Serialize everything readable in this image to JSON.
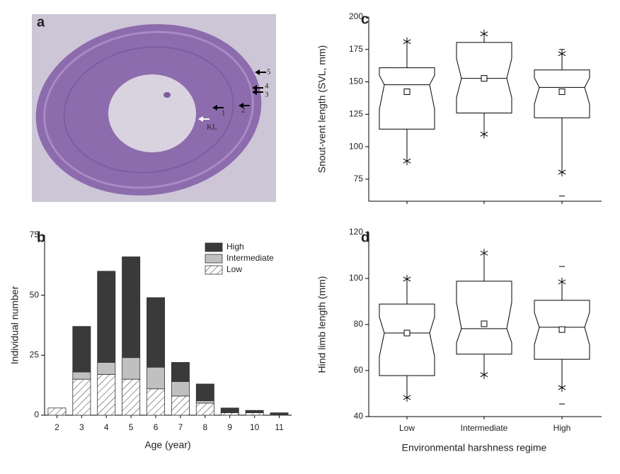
{
  "chart_data": [
    {
      "type": "image",
      "panel": "a",
      "annotations": [
        "1",
        "2",
        "3",
        "4",
        "5",
        "KL"
      ]
    },
    {
      "type": "bar",
      "stacked": true,
      "panel": "b",
      "xlabel": "Age (year)",
      "ylabel": "Individual number",
      "categories": [
        "2",
        "3",
        "4",
        "5",
        "6",
        "7",
        "8",
        "9",
        "10",
        "11"
      ],
      "series": [
        {
          "name": "Low",
          "color": "#ffffff",
          "pattern": "hatch",
          "values": [
            3,
            15,
            17,
            15,
            11,
            8,
            5,
            1,
            1,
            0
          ]
        },
        {
          "name": "Intermediate",
          "color": "#c0c0c0",
          "values": [
            0,
            3,
            5,
            9,
            9,
            6,
            1,
            0,
            0,
            0
          ]
        },
        {
          "name": "High",
          "color": "#3a3a3a",
          "values": [
            0,
            19,
            38,
            42,
            29,
            8,
            7,
            2,
            1,
            1
          ]
        }
      ],
      "ylim": [
        0,
        75
      ],
      "yticks": [
        0,
        25,
        50,
        75
      ],
      "legend": "upper right"
    },
    {
      "type": "box",
      "panel": "c",
      "ylabel": "Snout-vent length (SVL, mm)",
      "ylim": [
        58,
        200
      ],
      "yticks": [
        75,
        100,
        125,
        150,
        175,
        200
      ],
      "q1": [
        113.6,
        126,
        122.3
      ],
      "median": [
        147.8,
        152.7,
        145.7
      ],
      "q3": [
        160.9,
        180.4,
        159.2
      ],
      "mean": [
        142.4,
        152.7,
        142.4
      ],
      "whisker_low": [
        89,
        109.7,
        80.4
      ],
      "whisker_high": [
        181,
        187,
        171.7
      ],
      "min": [
        null,
        null,
        62
      ],
      "max": [
        null,
        null,
        175
      ]
    },
    {
      "type": "box",
      "panel": "d",
      "ylabel": "Hind limb length (mm)",
      "xlabel": "Environmental harshness regime",
      "categories": [
        "Low",
        "Intermediate",
        "High"
      ],
      "ylim": [
        40,
        120
      ],
      "yticks": [
        40,
        60,
        80,
        100,
        120
      ],
      "q1": [
        57.8,
        67.1,
        64.9
      ],
      "median": [
        76.3,
        78.2,
        78.8
      ],
      "q3": [
        88.9,
        98.8,
        90.5
      ],
      "mean": [
        76.3,
        80.3,
        77.8
      ],
      "whisker_low": [
        48.3,
        58.2,
        52.6
      ],
      "whisker_high": [
        99.7,
        111,
        98.5
      ],
      "min": [
        null,
        null,
        45.5
      ],
      "max": [
        null,
        null,
        105.2
      ]
    }
  ]
}
